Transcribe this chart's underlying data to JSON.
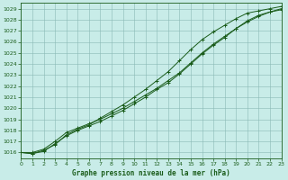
{
  "title": "Graphe pression niveau de la mer (hPa)",
  "bg_color": "#c8ece8",
  "grid_color": "#8ab8b4",
  "line_color": "#1a5c1a",
  "xlim": [
    0,
    23
  ],
  "ylim": [
    1015.5,
    1029.5
  ],
  "xticks": [
    0,
    1,
    2,
    3,
    4,
    5,
    6,
    7,
    8,
    9,
    10,
    11,
    12,
    13,
    14,
    15,
    16,
    17,
    18,
    19,
    20,
    21,
    22,
    23
  ],
  "yticks": [
    1016,
    1017,
    1018,
    1019,
    1020,
    1021,
    1022,
    1023,
    1024,
    1025,
    1026,
    1027,
    1028,
    1029
  ],
  "series1": {
    "x": [
      0,
      1,
      2,
      3,
      4,
      5,
      6,
      7,
      8,
      9,
      10,
      11,
      12,
      13,
      14,
      15,
      16,
      17,
      18,
      19,
      20,
      21,
      22,
      23
    ],
    "y": [
      1016.0,
      1015.9,
      1016.1,
      1016.8,
      1017.5,
      1018.0,
      1018.4,
      1018.8,
      1019.3,
      1019.8,
      1020.4,
      1021.0,
      1021.7,
      1022.3,
      1023.1,
      1024.0,
      1024.9,
      1025.7,
      1026.4,
      1027.2,
      1027.9,
      1028.4,
      1028.7,
      1029.0
    ]
  },
  "series2": {
    "x": [
      0,
      1,
      2,
      3,
      4,
      5,
      6,
      7,
      8,
      9,
      10,
      11,
      12,
      13,
      14,
      15,
      16,
      17,
      18,
      19,
      20,
      21,
      22,
      23
    ],
    "y": [
      1016.0,
      1015.9,
      1016.2,
      1016.7,
      1017.6,
      1018.1,
      1018.5,
      1019.1,
      1019.7,
      1020.3,
      1021.0,
      1021.7,
      1022.5,
      1023.3,
      1024.3,
      1025.3,
      1026.2,
      1026.9,
      1027.5,
      1028.1,
      1028.6,
      1028.8,
      1029.0,
      1029.2
    ]
  },
  "series3": {
    "x": [
      0,
      1,
      2,
      3,
      4,
      5,
      6,
      7,
      8,
      9,
      10,
      11,
      12,
      13,
      14,
      15,
      16,
      17,
      18,
      19,
      20,
      21,
      22,
      23
    ],
    "y": [
      1016.0,
      1016.0,
      1016.3,
      1017.0,
      1017.8,
      1018.2,
      1018.6,
      1019.0,
      1019.5,
      1020.0,
      1020.6,
      1021.2,
      1021.8,
      1022.5,
      1023.2,
      1024.1,
      1025.0,
      1025.8,
      1026.5,
      1027.2,
      1027.8,
      1028.3,
      1028.7,
      1028.9
    ]
  }
}
